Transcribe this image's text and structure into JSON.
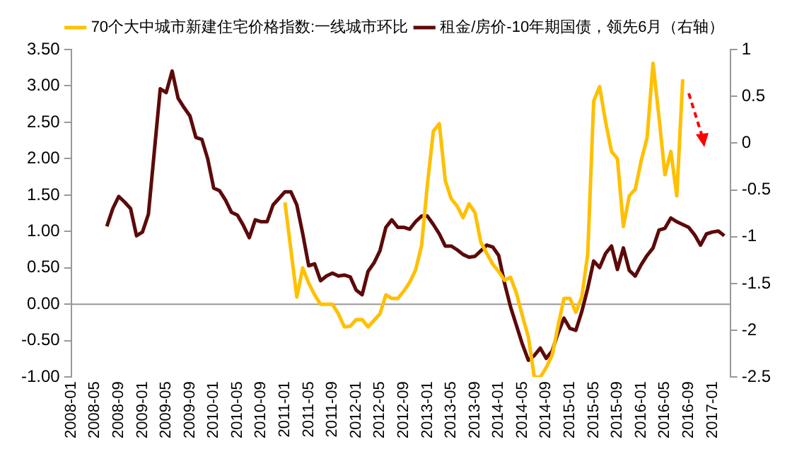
{
  "chart_data": {
    "type": "line",
    "categories": [
      "2008-01",
      null,
      null,
      null,
      "2008-05",
      null,
      null,
      null,
      "2008-09",
      null,
      null,
      null,
      "2009-01",
      null,
      null,
      null,
      "2009-05",
      null,
      null,
      null,
      "2009-09",
      null,
      null,
      null,
      "2010-01",
      null,
      null,
      null,
      "2010-05",
      null,
      null,
      null,
      "2010-09",
      null,
      null,
      null,
      "2011-01",
      null,
      null,
      null,
      "2011-05",
      null,
      null,
      null,
      "2011-09",
      null,
      null,
      null,
      "2012-01",
      null,
      null,
      null,
      "2012-05",
      null,
      null,
      null,
      "2012-09",
      null,
      null,
      null,
      "2013-01",
      null,
      null,
      null,
      "2013-05",
      null,
      null,
      null,
      "2013-09",
      null,
      null,
      null,
      "2014-01",
      null,
      null,
      null,
      "2014-05",
      null,
      null,
      null,
      "2014-09",
      null,
      null,
      null,
      "2015-01",
      null,
      null,
      null,
      "2015-05",
      null,
      null,
      null,
      "2015-09",
      null,
      null,
      null,
      "2016-01",
      null,
      null,
      null,
      "2016-05",
      null,
      null,
      null,
      "2016-09",
      null,
      null,
      null,
      "2017-01",
      null,
      null,
      null
    ],
    "series": [
      {
        "name": "70个大中城市新建住宅价格指数:一线城市环比",
        "color": "#ffc000",
        "values": [
          null,
          null,
          null,
          null,
          null,
          null,
          null,
          null,
          null,
          null,
          null,
          null,
          null,
          null,
          null,
          null,
          null,
          null,
          null,
          null,
          null,
          null,
          null,
          null,
          null,
          null,
          null,
          null,
          null,
          null,
          null,
          null,
          null,
          null,
          null,
          null,
          1.4,
          0.75,
          0.1,
          0.5,
          0.29,
          0.13,
          0,
          0,
          0,
          -0.13,
          -0.31,
          -0.3,
          -0.21,
          -0.21,
          -0.31,
          -0.22,
          -0.13,
          0.13,
          0.08,
          0.08,
          0.18,
          0.3,
          0.47,
          0.8,
          1.65,
          2.38,
          2.48,
          1.7,
          1.45,
          1.35,
          1.19,
          1.38,
          1.26,
          0.85,
          0.7,
          0.55,
          0.45,
          0.33,
          0.37,
          0.15,
          -0.16,
          -0.45,
          -1.0,
          -1.0,
          -0.87,
          -0.7,
          -0.3,
          0.08,
          0.08,
          -0.11,
          0.1,
          0.69,
          2.79,
          2.99,
          2.51,
          2.1,
          2.0,
          1.07,
          1.49,
          1.58,
          1.97,
          2.29,
          3.31,
          2.57,
          1.78,
          2.1,
          1.49,
          3.09,
          null,
          null,
          null,
          null,
          null,
          null,
          null,
          null
        ]
      },
      {
        "name": "租金/房价-10年期国债，领先6月（右轴）",
        "color": "#5c0a0a",
        "axis": "y2",
        "values": [
          null,
          null,
          null,
          null,
          null,
          null,
          -0.89,
          -0.7,
          -0.57,
          -0.63,
          -0.7,
          -0.99,
          -0.95,
          -0.76,
          -0.09,
          0.58,
          0.54,
          0.77,
          0.48,
          0.38,
          0.29,
          0.06,
          0.04,
          -0.17,
          -0.48,
          -0.51,
          -0.61,
          -0.74,
          -0.77,
          -0.88,
          -1.01,
          -0.82,
          -0.84,
          -0.84,
          -0.66,
          -0.59,
          -0.52,
          -0.52,
          -0.66,
          -0.97,
          -1.31,
          -1.29,
          -1.47,
          -1.42,
          -1.39,
          -1.42,
          -1.41,
          -1.43,
          -1.57,
          -1.62,
          -1.37,
          -1.28,
          -1.15,
          -0.9,
          -0.82,
          -0.9,
          -0.9,
          -0.92,
          -0.84,
          -0.78,
          -0.78,
          -0.87,
          -0.97,
          -1.1,
          -1.1,
          -1.14,
          -1.19,
          -1.22,
          -1.21,
          -1.15,
          -1.09,
          -1.11,
          -1.2,
          -1.5,
          -1.75,
          -1.95,
          -2.15,
          -2.32,
          -2.27,
          -2.19,
          -2.3,
          -2.22,
          -2.03,
          -1.87,
          -1.98,
          -2.0,
          -1.8,
          -1.55,
          -1.26,
          -1.33,
          -1.18,
          -1.1,
          -1.35,
          -1.12,
          -1.36,
          -1.42,
          -1.3,
          -1.2,
          -1.12,
          -0.93,
          -0.91,
          -0.8,
          -0.84,
          -0.87,
          -0.9,
          -0.98,
          -1.09,
          -0.97,
          -0.95,
          -0.94,
          -0.99,
          null
        ]
      }
    ],
    "ylim": [
      -1,
      3.5
    ],
    "yticks": [
      {
        "value": -1,
        "label": "-1.00"
      },
      {
        "value": -0.5,
        "label": "-0.50"
      },
      {
        "value": 0,
        "label": "0.00"
      },
      {
        "value": 0.5,
        "label": "0.50"
      },
      {
        "value": 1,
        "label": "1.00"
      },
      {
        "value": 1.5,
        "label": "1.50"
      },
      {
        "value": 2,
        "label": "2.00"
      },
      {
        "value": 2.5,
        "label": "2.50"
      },
      {
        "value": 3,
        "label": "3.00"
      },
      {
        "value": 3.5,
        "label": "3.50"
      }
    ],
    "y2lim": [
      -2.5,
      1
    ],
    "y2ticks": [
      -2.5,
      -2,
      -1.5,
      -1,
      -0.5,
      0,
      0.5,
      1
    ],
    "legend": "top",
    "grid": false,
    "ref_lines": [
      {
        "axis": "y",
        "value": 0,
        "color": "#999999"
      }
    ],
    "marker": "none",
    "line_style": "solid"
  }
}
